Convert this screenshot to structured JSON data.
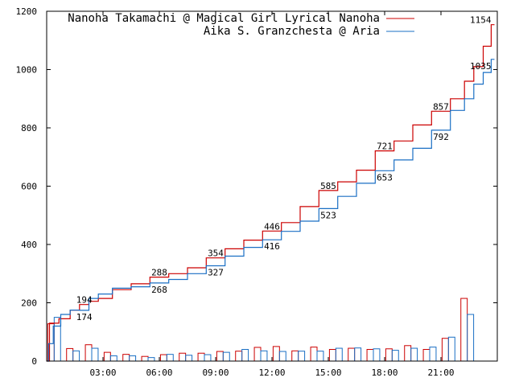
{
  "chart_data": {
    "type": "line",
    "xlabel": "",
    "ylabel": "",
    "xlim": [
      0,
      24
    ],
    "ylim": [
      0,
      1200
    ],
    "y_ticks": [
      0,
      200,
      400,
      600,
      800,
      1000,
      1200
    ],
    "x_ticks": [
      {
        "value": 3,
        "label": "03:00"
      },
      {
        "value": 6,
        "label": "06:00"
      },
      {
        "value": 9,
        "label": "09:00"
      },
      {
        "value": 12,
        "label": "12:00"
      },
      {
        "value": 15,
        "label": "15:00"
      },
      {
        "value": 18,
        "label": "18:00"
      },
      {
        "value": 21,
        "label": "21:00"
      }
    ],
    "grid": false,
    "legend_position": "top-right",
    "series": [
      {
        "name": "Nanoha Takamachi @ Magical Girl Lyrical Nanoha",
        "color": "#cc0000",
        "cumulative": [
          [
            0,
            0
          ],
          [
            0.3,
            130
          ],
          [
            1,
            145
          ],
          [
            1.5,
            175
          ],
          [
            2,
            194
          ],
          [
            2.5,
            205
          ],
          [
            3,
            215
          ],
          [
            4,
            245
          ],
          [
            5,
            265
          ],
          [
            6,
            288
          ],
          [
            7,
            300
          ],
          [
            8,
            320
          ],
          [
            9,
            354
          ],
          [
            10,
            385
          ],
          [
            11,
            415
          ],
          [
            12,
            446
          ],
          [
            13,
            475
          ],
          [
            14,
            530
          ],
          [
            15,
            585
          ],
          [
            16,
            615
          ],
          [
            17,
            655
          ],
          [
            18,
            721
          ],
          [
            19,
            755
          ],
          [
            20,
            810
          ],
          [
            21,
            857
          ],
          [
            22,
            900
          ],
          [
            22.5,
            960
          ],
          [
            23,
            1010
          ],
          [
            23.5,
            1080
          ],
          [
            23.85,
            1154
          ]
        ],
        "bars": [
          {
            "hour": 0,
            "value": 128
          },
          {
            "hour": 1,
            "value": 43
          },
          {
            "hour": 2,
            "value": 56
          },
          {
            "hour": 3,
            "value": 30
          },
          {
            "hour": 4,
            "value": 23
          },
          {
            "hour": 5,
            "value": 16
          },
          {
            "hour": 6,
            "value": 22
          },
          {
            "hour": 7,
            "value": 27
          },
          {
            "hour": 8,
            "value": 27
          },
          {
            "hour": 9,
            "value": 33
          },
          {
            "hour": 10,
            "value": 34
          },
          {
            "hour": 11,
            "value": 47
          },
          {
            "hour": 12,
            "value": 50
          },
          {
            "hour": 13,
            "value": 35
          },
          {
            "hour": 14,
            "value": 48
          },
          {
            "hour": 15,
            "value": 40
          },
          {
            "hour": 16,
            "value": 44
          },
          {
            "hour": 17,
            "value": 40
          },
          {
            "hour": 18,
            "value": 42
          },
          {
            "hour": 19,
            "value": 53
          },
          {
            "hour": 20,
            "value": 40
          },
          {
            "hour": 21,
            "value": 78
          },
          {
            "hour": 22,
            "value": 215
          }
        ],
        "labels": [
          {
            "x": 2,
            "y": 194,
            "text": "194"
          },
          {
            "x": 6,
            "y": 288,
            "text": "288"
          },
          {
            "x": 9,
            "y": 354,
            "text": "354"
          },
          {
            "x": 12,
            "y": 446,
            "text": "446"
          },
          {
            "x": 15,
            "y": 585,
            "text": "585"
          },
          {
            "x": 18,
            "y": 721,
            "text": "721"
          },
          {
            "x": 21,
            "y": 857,
            "text": "857"
          },
          {
            "x": 23.85,
            "y": 1154,
            "text": "1154"
          }
        ]
      },
      {
        "name": "Aika S. Granzchesta @ Aria",
        "color": "#1a6fc4",
        "cumulative": [
          [
            0,
            0
          ],
          [
            0.2,
            60
          ],
          [
            0.5,
            120
          ],
          [
            1,
            160
          ],
          [
            1.5,
            175
          ],
          [
            2,
            174
          ],
          [
            2.5,
            215
          ],
          [
            3,
            230
          ],
          [
            4,
            250
          ],
          [
            5,
            255
          ],
          [
            6,
            268
          ],
          [
            7,
            280
          ],
          [
            8,
            300
          ],
          [
            9,
            327
          ],
          [
            10,
            360
          ],
          [
            11,
            390
          ],
          [
            12,
            416
          ],
          [
            13,
            445
          ],
          [
            14,
            480
          ],
          [
            15,
            523
          ],
          [
            16,
            565
          ],
          [
            17,
            610
          ],
          [
            18,
            653
          ],
          [
            19,
            690
          ],
          [
            20,
            730
          ],
          [
            21,
            792
          ],
          [
            22,
            860
          ],
          [
            22.5,
            900
          ],
          [
            23,
            950
          ],
          [
            23.5,
            990
          ],
          [
            23.85,
            1035
          ]
        ],
        "bars": [
          {
            "hour": 0,
            "value": 150
          },
          {
            "hour": 1,
            "value": 35
          },
          {
            "hour": 2,
            "value": 44
          },
          {
            "hour": 3,
            "value": 18
          },
          {
            "hour": 4,
            "value": 18
          },
          {
            "hour": 5,
            "value": 12
          },
          {
            "hour": 6,
            "value": 23
          },
          {
            "hour": 7,
            "value": 20
          },
          {
            "hour": 8,
            "value": 22
          },
          {
            "hour": 9,
            "value": 30
          },
          {
            "hour": 10,
            "value": 40
          },
          {
            "hour": 11,
            "value": 35
          },
          {
            "hour": 12,
            "value": 33
          },
          {
            "hour": 13,
            "value": 34
          },
          {
            "hour": 14,
            "value": 34
          },
          {
            "hour": 15,
            "value": 44
          },
          {
            "hour": 16,
            "value": 45
          },
          {
            "hour": 17,
            "value": 42
          },
          {
            "hour": 18,
            "value": 37
          },
          {
            "hour": 19,
            "value": 44
          },
          {
            "hour": 20,
            "value": 48
          },
          {
            "hour": 21,
            "value": 82
          },
          {
            "hour": 22,
            "value": 160
          }
        ],
        "labels": [
          {
            "x": 2,
            "y": 174,
            "text": "174"
          },
          {
            "x": 6,
            "y": 268,
            "text": "268"
          },
          {
            "x": 9,
            "y": 327,
            "text": "327"
          },
          {
            "x": 12,
            "y": 416,
            "text": "416"
          },
          {
            "x": 15,
            "y": 523,
            "text": "523"
          },
          {
            "x": 18,
            "y": 653,
            "text": "653"
          },
          {
            "x": 21,
            "y": 792,
            "text": "792"
          },
          {
            "x": 23.85,
            "y": 1035,
            "text": "1035"
          }
        ]
      }
    ]
  }
}
